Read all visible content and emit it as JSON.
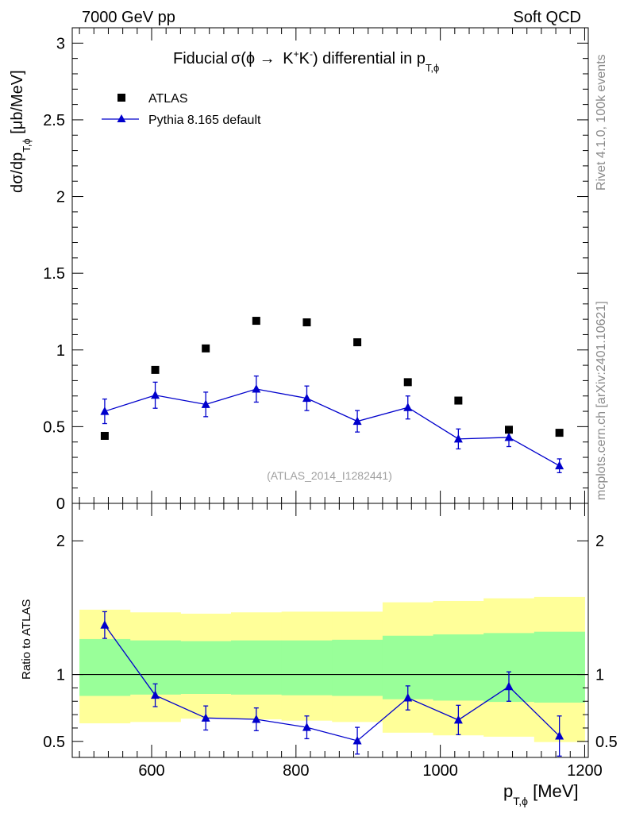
{
  "header": {
    "left": "7000 GeV pp",
    "right": "Soft QCD"
  },
  "side_labels": {
    "rivet": "Rivet 4.1.0,  100k events",
    "mcplots": "mcplots.cern.ch [arXiv:2401.10621]"
  },
  "watermark": "(ATLAS_2014_I1282441)",
  "chart_data": [
    {
      "type": "scatter",
      "panel": "main",
      "title_parts": {
        "a": "Fiducial",
        "b": "σ(ϕ → ",
        "c": "K",
        "d": "+",
        "e": "K",
        "f": "-",
        "g": ") differential in p",
        "h": "T,ϕ"
      },
      "ylabel_parts": {
        "a": "dσ/dp",
        "b": "T,ϕ",
        "c": " [μb/MeV]"
      },
      "xlim": [
        490,
        1205
      ],
      "ylim": [
        0,
        3.1
      ],
      "yticks": [
        0,
        0.5,
        1,
        1.5,
        2,
        2.5,
        3
      ],
      "ytick_labels": [
        "0",
        "0.5",
        "1",
        "1.5",
        "2",
        "2.5",
        "3"
      ],
      "legend_position": "top-left",
      "series": [
        {
          "name": "ATLAS",
          "marker": "square",
          "color": "#000000",
          "x": [
            535,
            605,
            675,
            745,
            815,
            885,
            955,
            1025,
            1095,
            1165
          ],
          "y": [
            0.44,
            0.87,
            1.01,
            1.19,
            1.18,
            1.05,
            0.79,
            0.67,
            0.48,
            0.46
          ]
        },
        {
          "name": "Pythia 8.165 default",
          "marker": "triangle",
          "color": "#0000cc",
          "x": [
            535,
            605,
            675,
            745,
            815,
            885,
            955,
            1025,
            1095,
            1165
          ],
          "y": [
            0.6,
            0.705,
            0.645,
            0.745,
            0.685,
            0.535,
            0.625,
            0.42,
            0.43,
            0.245
          ],
          "yerr": [
            0.08,
            0.085,
            0.08,
            0.085,
            0.08,
            0.07,
            0.075,
            0.065,
            0.06,
            0.045
          ]
        }
      ]
    },
    {
      "type": "line",
      "panel": "ratio",
      "ylabel": "Ratio to ATLAS",
      "xlabel_parts": {
        "a": "p",
        "b": "T,ϕ",
        "c": " [MeV]"
      },
      "xlim": [
        490,
        1205
      ],
      "ylim": [
        0.38,
        2.28
      ],
      "xticks": [
        600,
        800,
        1000,
        1200
      ],
      "xtick_labels": [
        "600",
        "800",
        "1000",
        "1200"
      ],
      "yticks": [
        0.5,
        1,
        2
      ],
      "ytick_labels": [
        "0.5",
        "1",
        "2"
      ],
      "reference_line": 1,
      "bands": {
        "edges": [
          500,
          570,
          640,
          710,
          780,
          850,
          920,
          990,
          1060,
          1130,
          1200
        ],
        "yellow_low": [
          0.635,
          0.645,
          0.67,
          0.665,
          0.655,
          0.645,
          0.565,
          0.545,
          0.535,
          0.495
        ],
        "yellow_high": [
          1.485,
          1.465,
          1.455,
          1.465,
          1.47,
          1.47,
          1.54,
          1.55,
          1.57,
          1.58
        ],
        "green_low": [
          0.84,
          0.85,
          0.855,
          0.85,
          0.845,
          0.84,
          0.815,
          0.805,
          0.795,
          0.79
        ],
        "green_high": [
          1.265,
          1.255,
          1.25,
          1.255,
          1.255,
          1.26,
          1.29,
          1.3,
          1.31,
          1.32
        ],
        "yellow_color": "#ffff99",
        "green_color": "#99ff99"
      },
      "series": [
        {
          "name": "Pythia 8.165 default",
          "color": "#0000cc",
          "x": [
            535,
            605,
            675,
            745,
            815,
            885,
            955,
            1025,
            1095,
            1165
          ],
          "y": [
            1.37,
            0.845,
            0.675,
            0.665,
            0.605,
            0.505,
            0.825,
            0.66,
            0.91,
            0.54
          ],
          "yerr": [
            0.1,
            0.085,
            0.09,
            0.085,
            0.085,
            0.1,
            0.09,
            0.11,
            0.11,
            0.15
          ]
        }
      ]
    }
  ]
}
